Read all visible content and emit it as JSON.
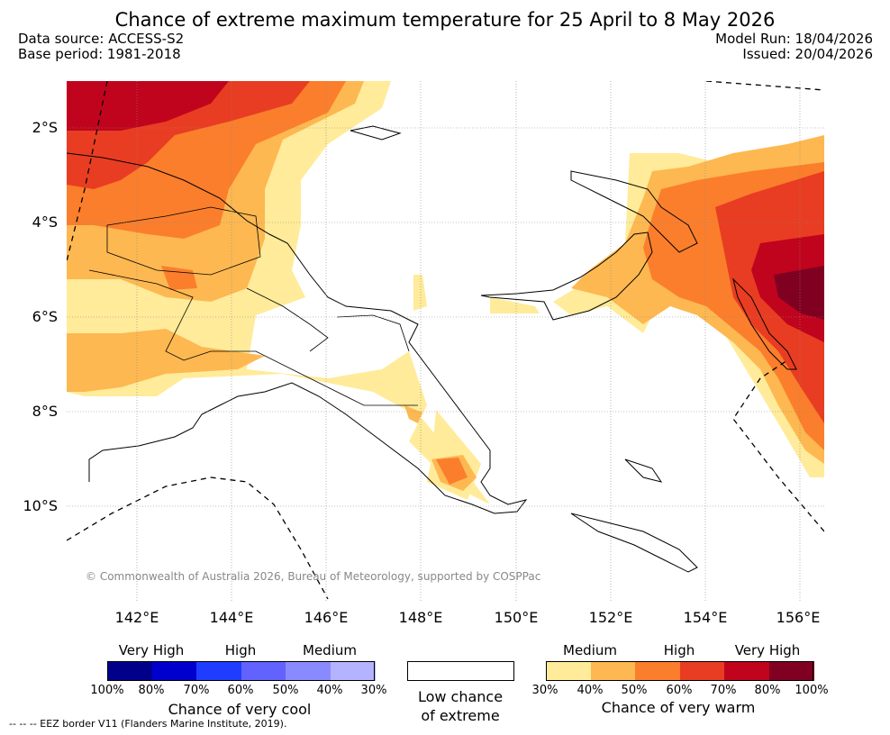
{
  "title": "Chance of extreme maximum temperature for 25 April to 8 May 2026",
  "meta": {
    "data_source": "Data source: ACCESS-S2",
    "base_period": "Base period: 1981-2018",
    "model_run": "Model Run: 18/04/2026",
    "issued": "Issued: 20/04/2026"
  },
  "axes": {
    "lat_labels": [
      "2°S",
      "4°S",
      "6°S",
      "8°S",
      "10°S"
    ],
    "lon_labels": [
      "142°E",
      "144°E",
      "146°E",
      "148°E",
      "150°E",
      "152°E",
      "154°E",
      "156°E"
    ]
  },
  "copyright": "© Commonwealth of Australia 2026, Bureau of Meteorology, supported by COSPPac",
  "legend": {
    "cool": {
      "headers": [
        "Very High",
        "High",
        "Medium"
      ],
      "ticks": [
        "100%",
        "80%",
        "70%",
        "60%",
        "50%",
        "40%",
        "30%"
      ],
      "colors": [
        "#00008b",
        "#0000cd",
        "#1f3cff",
        "#6262ff",
        "#8a8aff",
        "#b3b3ff"
      ],
      "title": "Chance of very cool"
    },
    "low": {
      "line1": "Low chance",
      "line2": "of extreme"
    },
    "warm": {
      "headers": [
        "Medium",
        "High",
        "Very High"
      ],
      "ticks": [
        "30%",
        "40%",
        "50%",
        "60%",
        "70%",
        "80%",
        "100%"
      ],
      "colors": [
        "#ffeb99",
        "#fdb851",
        "#fb7e2c",
        "#e83d22",
        "#c0041d",
        "#800022"
      ],
      "title": "Chance of very warm"
    }
  },
  "eez_note": "--  --  -- EEZ border V11 (Flanders Marine Institute, 2019)."
}
